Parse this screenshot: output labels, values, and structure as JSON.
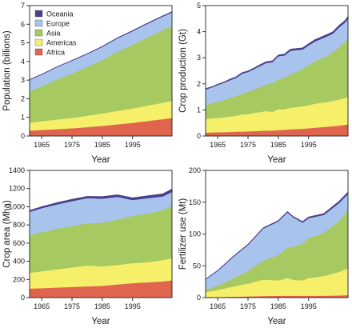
{
  "legend": {
    "position": "top-left",
    "entries": [
      {
        "name": "Oceania",
        "color": "#4a3f8c"
      },
      {
        "name": "Europe",
        "color": "#a9c4ec"
      },
      {
        "name": "Asia",
        "color": "#a6c962"
      },
      {
        "name": "Americas",
        "color": "#f6ef6a"
      },
      {
        "name": "Africa",
        "color": "#e0654f"
      }
    ]
  },
  "chart_data": [
    {
      "type": "area",
      "stacked": true,
      "title": "",
      "xlabel": "Year",
      "ylabel": "Population (billions)",
      "xlim": [
        1961,
        2008
      ],
      "ylim": [
        0,
        7
      ],
      "yticks": [
        0,
        1,
        2,
        3,
        4,
        5,
        6,
        7
      ],
      "xtick_labels": [
        "1965",
        "1975",
        "1985",
        "1995"
      ],
      "x": [
        1961,
        1965,
        1970,
        1975,
        1980,
        1985,
        1990,
        1995,
        2000,
        2005,
        2008
      ],
      "series": [
        {
          "name": "Africa",
          "color": "#e0654f",
          "values": [
            0.29,
            0.33,
            0.37,
            0.42,
            0.48,
            0.55,
            0.63,
            0.71,
            0.81,
            0.91,
            0.98
          ]
        },
        {
          "name": "Americas",
          "color": "#f6ef6a",
          "values": [
            0.43,
            0.47,
            0.52,
            0.56,
            0.61,
            0.67,
            0.72,
            0.77,
            0.83,
            0.88,
            0.91
          ]
        },
        {
          "name": "Asia",
          "color": "#a6c962",
          "values": [
            1.7,
            1.87,
            2.15,
            2.38,
            2.62,
            2.86,
            3.18,
            3.42,
            3.67,
            3.9,
            4.02
          ]
        },
        {
          "name": "Europe",
          "color": "#a9c4ec",
          "values": [
            0.6,
            0.63,
            0.66,
            0.68,
            0.69,
            0.71,
            0.72,
            0.73,
            0.73,
            0.73,
            0.73
          ]
        },
        {
          "name": "Oceania",
          "color": "#4a3f8c",
          "values": [
            0.016,
            0.017,
            0.019,
            0.021,
            0.023,
            0.025,
            0.027,
            0.029,
            0.031,
            0.034,
            0.035
          ]
        }
      ]
    },
    {
      "type": "area",
      "stacked": true,
      "title": "",
      "xlabel": "Year",
      "ylabel": "Crop production (Gt)",
      "xlim": [
        1961,
        2008
      ],
      "ylim": [
        0,
        5
      ],
      "yticks": [
        0,
        1,
        2,
        3,
        4,
        5
      ],
      "xtick_labels": [
        "1965",
        "1975",
        "1985",
        "1995"
      ],
      "x": [
        1961,
        1963,
        1965,
        1967,
        1969,
        1971,
        1973,
        1975,
        1977,
        1979,
        1981,
        1983,
        1985,
        1987,
        1989,
        1991,
        1993,
        1995,
        1997,
        1999,
        2001,
        2003,
        2005,
        2007,
        2008
      ],
      "series": [
        {
          "name": "Africa",
          "color": "#e0654f",
          "values": [
            0.13,
            0.14,
            0.15,
            0.15,
            0.16,
            0.17,
            0.17,
            0.18,
            0.19,
            0.2,
            0.21,
            0.21,
            0.23,
            0.24,
            0.26,
            0.27,
            0.28,
            0.3,
            0.32,
            0.34,
            0.36,
            0.38,
            0.4,
            0.43,
            0.45
          ]
        },
        {
          "name": "Americas",
          "color": "#f6ef6a",
          "values": [
            0.52,
            0.54,
            0.55,
            0.57,
            0.59,
            0.61,
            0.66,
            0.66,
            0.7,
            0.72,
            0.75,
            0.72,
            0.8,
            0.79,
            0.83,
            0.84,
            0.86,
            0.88,
            0.92,
            0.93,
            0.94,
            0.97,
            1.0,
            1.03,
            1.05
          ]
        },
        {
          "name": "Asia",
          "color": "#a6c962",
          "values": [
            0.55,
            0.58,
            0.62,
            0.66,
            0.71,
            0.75,
            0.8,
            0.86,
            0.9,
            0.96,
            1.02,
            1.1,
            1.15,
            1.2,
            1.28,
            1.35,
            1.44,
            1.55,
            1.62,
            1.71,
            1.76,
            1.88,
            2.0,
            2.15,
            2.25
          ]
        },
        {
          "name": "Europe",
          "color": "#a9c4ec",
          "values": [
            0.59,
            0.6,
            0.64,
            0.66,
            0.68,
            0.7,
            0.76,
            0.76,
            0.78,
            0.81,
            0.82,
            0.8,
            0.88,
            0.86,
            0.9,
            0.84,
            0.74,
            0.75,
            0.76,
            0.74,
            0.76,
            0.7,
            0.76,
            0.74,
            0.76
          ]
        },
        {
          "name": "Oceania",
          "color": "#4a3f8c",
          "values": [
            0.03,
            0.03,
            0.03,
            0.03,
            0.04,
            0.04,
            0.04,
            0.04,
            0.04,
            0.05,
            0.05,
            0.05,
            0.05,
            0.05,
            0.06,
            0.06,
            0.06,
            0.06,
            0.07,
            0.07,
            0.07,
            0.07,
            0.08,
            0.08,
            0.08
          ]
        }
      ]
    },
    {
      "type": "area",
      "stacked": true,
      "title": "",
      "xlabel": "Year",
      "ylabel": "Crop area (Mha)",
      "xlim": [
        1961,
        2008
      ],
      "ylim": [
        0,
        1400
      ],
      "yticks": [
        0,
        200,
        400,
        600,
        800,
        1000,
        1200,
        1400
      ],
      "xtick_labels": [
        "1965",
        "1975",
        "1985",
        "1995"
      ],
      "x": [
        1961,
        1965,
        1970,
        1975,
        1980,
        1985,
        1990,
        1995,
        2000,
        2005,
        2008
      ],
      "series": [
        {
          "name": "Africa",
          "color": "#e0654f",
          "values": [
            100,
            105,
            112,
            118,
            125,
            130,
            145,
            160,
            170,
            180,
            190
          ]
        },
        {
          "name": "Americas",
          "color": "#f6ef6a",
          "values": [
            175,
            185,
            200,
            215,
            230,
            215,
            215,
            220,
            220,
            235,
            245
          ]
        },
        {
          "name": "Asia",
          "color": "#a6c962",
          "values": [
            415,
            430,
            445,
            455,
            465,
            480,
            500,
            520,
            535,
            550,
            575
          ]
        },
        {
          "name": "Europe",
          "color": "#a9c4ec",
          "values": [
            255,
            265,
            270,
            275,
            275,
            265,
            250,
            175,
            170,
            150,
            155
          ]
        },
        {
          "name": "Oceania",
          "color": "#4a3f8c",
          "values": [
            15,
            16,
            18,
            19,
            20,
            22,
            22,
            24,
            26,
            28,
            30
          ]
        }
      ]
    },
    {
      "type": "area",
      "stacked": true,
      "title": "",
      "xlabel": "Year",
      "ylabel": "Fertilizer use (Mt)",
      "xlim": [
        1961,
        2008
      ],
      "ylim": [
        0,
        200
      ],
      "yticks": [
        0,
        50,
        100,
        150,
        200
      ],
      "xtick_labels": [
        "1965",
        "1975",
        "1985",
        "1995"
      ],
      "x": [
        1961,
        1965,
        1970,
        1975,
        1980,
        1985,
        1988,
        1990,
        1993,
        1995,
        2000,
        2005,
        2008
      ],
      "series": [
        {
          "name": "Africa",
          "color": "#e0654f",
          "values": [
            0.5,
            1,
            1.5,
            2,
            2.5,
            3,
            3,
            3,
            3,
            3,
            3,
            3.5,
            4
          ]
        },
        {
          "name": "Americas",
          "color": "#f6ef6a",
          "values": [
            8,
            11,
            16,
            20,
            26,
            24,
            28,
            25,
            24,
            28,
            31,
            37,
            42
          ]
        },
        {
          "name": "Asia",
          "color": "#a6c962",
          "values": [
            4,
            7,
            13,
            20,
            30,
            40,
            48,
            52,
            58,
            63,
            68,
            80,
            92
          ]
        },
        {
          "name": "Europe",
          "color": "#a9c4ec",
          "values": [
            16,
            23,
            33,
            41,
            50,
            53,
            55,
            46,
            33,
            31,
            28,
            28,
            25
          ]
        },
        {
          "name": "Oceania",
          "color": "#4a3f8c",
          "values": [
            0.5,
            0.8,
            1,
            1,
            1.2,
            1.3,
            1.4,
            1.4,
            1.6,
            1.8,
            2.2,
            2.8,
            3
          ]
        }
      ]
    }
  ]
}
